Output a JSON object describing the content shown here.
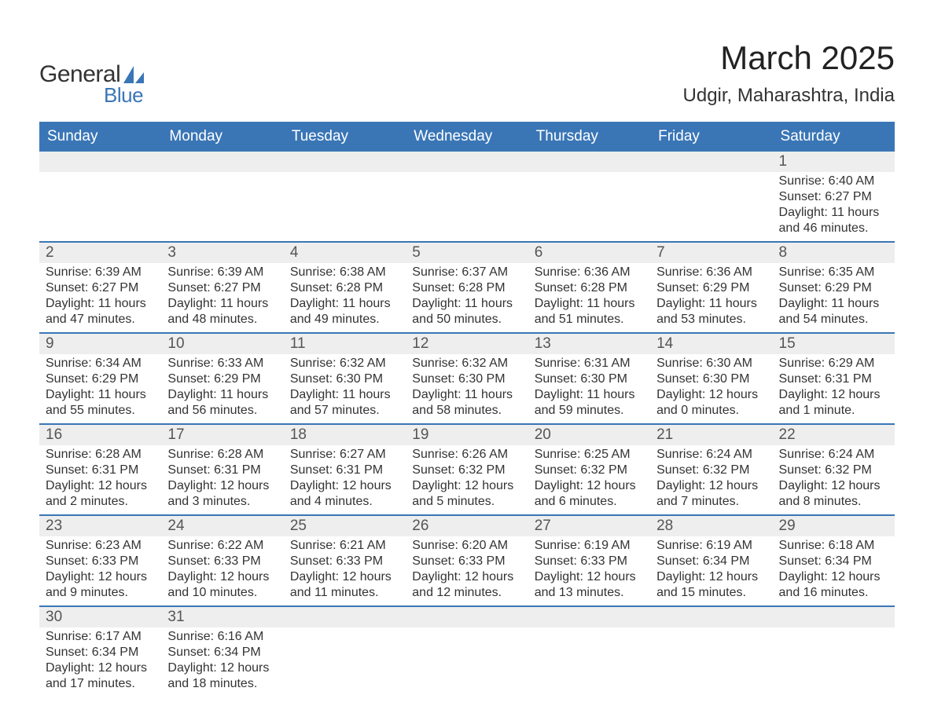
{
  "logo": {
    "text_general": "General",
    "text_blue": "Blue",
    "sail_color": "#3a76b6",
    "text_general_color": "#333333",
    "text_blue_color": "#3a76b6"
  },
  "title": {
    "month": "March 2025",
    "location": "Udgir, Maharashtra, India",
    "month_fontsize": 42,
    "location_fontsize": 24
  },
  "colors": {
    "header_bg": "#3a76b6",
    "header_text": "#ffffff",
    "row_divider": "#3a76b6",
    "daynum_bg": "#eeeeee",
    "body_text": "#333333",
    "background": "#ffffff"
  },
  "calendar": {
    "columns": [
      "Sunday",
      "Monday",
      "Tuesday",
      "Wednesday",
      "Thursday",
      "Friday",
      "Saturday"
    ],
    "label_sunrise": "Sunrise: ",
    "label_sunset": "Sunset: ",
    "label_daylight": "Daylight: ",
    "weeks": [
      [
        null,
        null,
        null,
        null,
        null,
        null,
        {
          "day": "1",
          "sunrise": "6:40 AM",
          "sunset": "6:27 PM",
          "daylight": "11 hours and 46 minutes."
        }
      ],
      [
        {
          "day": "2",
          "sunrise": "6:39 AM",
          "sunset": "6:27 PM",
          "daylight": "11 hours and 47 minutes."
        },
        {
          "day": "3",
          "sunrise": "6:39 AM",
          "sunset": "6:27 PM",
          "daylight": "11 hours and 48 minutes."
        },
        {
          "day": "4",
          "sunrise": "6:38 AM",
          "sunset": "6:28 PM",
          "daylight": "11 hours and 49 minutes."
        },
        {
          "day": "5",
          "sunrise": "6:37 AM",
          "sunset": "6:28 PM",
          "daylight": "11 hours and 50 minutes."
        },
        {
          "day": "6",
          "sunrise": "6:36 AM",
          "sunset": "6:28 PM",
          "daylight": "11 hours and 51 minutes."
        },
        {
          "day": "7",
          "sunrise": "6:36 AM",
          "sunset": "6:29 PM",
          "daylight": "11 hours and 53 minutes."
        },
        {
          "day": "8",
          "sunrise": "6:35 AM",
          "sunset": "6:29 PM",
          "daylight": "11 hours and 54 minutes."
        }
      ],
      [
        {
          "day": "9",
          "sunrise": "6:34 AM",
          "sunset": "6:29 PM",
          "daylight": "11 hours and 55 minutes."
        },
        {
          "day": "10",
          "sunrise": "6:33 AM",
          "sunset": "6:29 PM",
          "daylight": "11 hours and 56 minutes."
        },
        {
          "day": "11",
          "sunrise": "6:32 AM",
          "sunset": "6:30 PM",
          "daylight": "11 hours and 57 minutes."
        },
        {
          "day": "12",
          "sunrise": "6:32 AM",
          "sunset": "6:30 PM",
          "daylight": "11 hours and 58 minutes."
        },
        {
          "day": "13",
          "sunrise": "6:31 AM",
          "sunset": "6:30 PM",
          "daylight": "11 hours and 59 minutes."
        },
        {
          "day": "14",
          "sunrise": "6:30 AM",
          "sunset": "6:30 PM",
          "daylight": "12 hours and 0 minutes."
        },
        {
          "day": "15",
          "sunrise": "6:29 AM",
          "sunset": "6:31 PM",
          "daylight": "12 hours and 1 minute."
        }
      ],
      [
        {
          "day": "16",
          "sunrise": "6:28 AM",
          "sunset": "6:31 PM",
          "daylight": "12 hours and 2 minutes."
        },
        {
          "day": "17",
          "sunrise": "6:28 AM",
          "sunset": "6:31 PM",
          "daylight": "12 hours and 3 minutes."
        },
        {
          "day": "18",
          "sunrise": "6:27 AM",
          "sunset": "6:31 PM",
          "daylight": "12 hours and 4 minutes."
        },
        {
          "day": "19",
          "sunrise": "6:26 AM",
          "sunset": "6:32 PM",
          "daylight": "12 hours and 5 minutes."
        },
        {
          "day": "20",
          "sunrise": "6:25 AM",
          "sunset": "6:32 PM",
          "daylight": "12 hours and 6 minutes."
        },
        {
          "day": "21",
          "sunrise": "6:24 AM",
          "sunset": "6:32 PM",
          "daylight": "12 hours and 7 minutes."
        },
        {
          "day": "22",
          "sunrise": "6:24 AM",
          "sunset": "6:32 PM",
          "daylight": "12 hours and 8 minutes."
        }
      ],
      [
        {
          "day": "23",
          "sunrise": "6:23 AM",
          "sunset": "6:33 PM",
          "daylight": "12 hours and 9 minutes."
        },
        {
          "day": "24",
          "sunrise": "6:22 AM",
          "sunset": "6:33 PM",
          "daylight": "12 hours and 10 minutes."
        },
        {
          "day": "25",
          "sunrise": "6:21 AM",
          "sunset": "6:33 PM",
          "daylight": "12 hours and 11 minutes."
        },
        {
          "day": "26",
          "sunrise": "6:20 AM",
          "sunset": "6:33 PM",
          "daylight": "12 hours and 12 minutes."
        },
        {
          "day": "27",
          "sunrise": "6:19 AM",
          "sunset": "6:33 PM",
          "daylight": "12 hours and 13 minutes."
        },
        {
          "day": "28",
          "sunrise": "6:19 AM",
          "sunset": "6:34 PM",
          "daylight": "12 hours and 15 minutes."
        },
        {
          "day": "29",
          "sunrise": "6:18 AM",
          "sunset": "6:34 PM",
          "daylight": "12 hours and 16 minutes."
        }
      ],
      [
        {
          "day": "30",
          "sunrise": "6:17 AM",
          "sunset": "6:34 PM",
          "daylight": "12 hours and 17 minutes."
        },
        {
          "day": "31",
          "sunrise": "6:16 AM",
          "sunset": "6:34 PM",
          "daylight": "12 hours and 18 minutes."
        },
        null,
        null,
        null,
        null,
        null
      ]
    ]
  }
}
